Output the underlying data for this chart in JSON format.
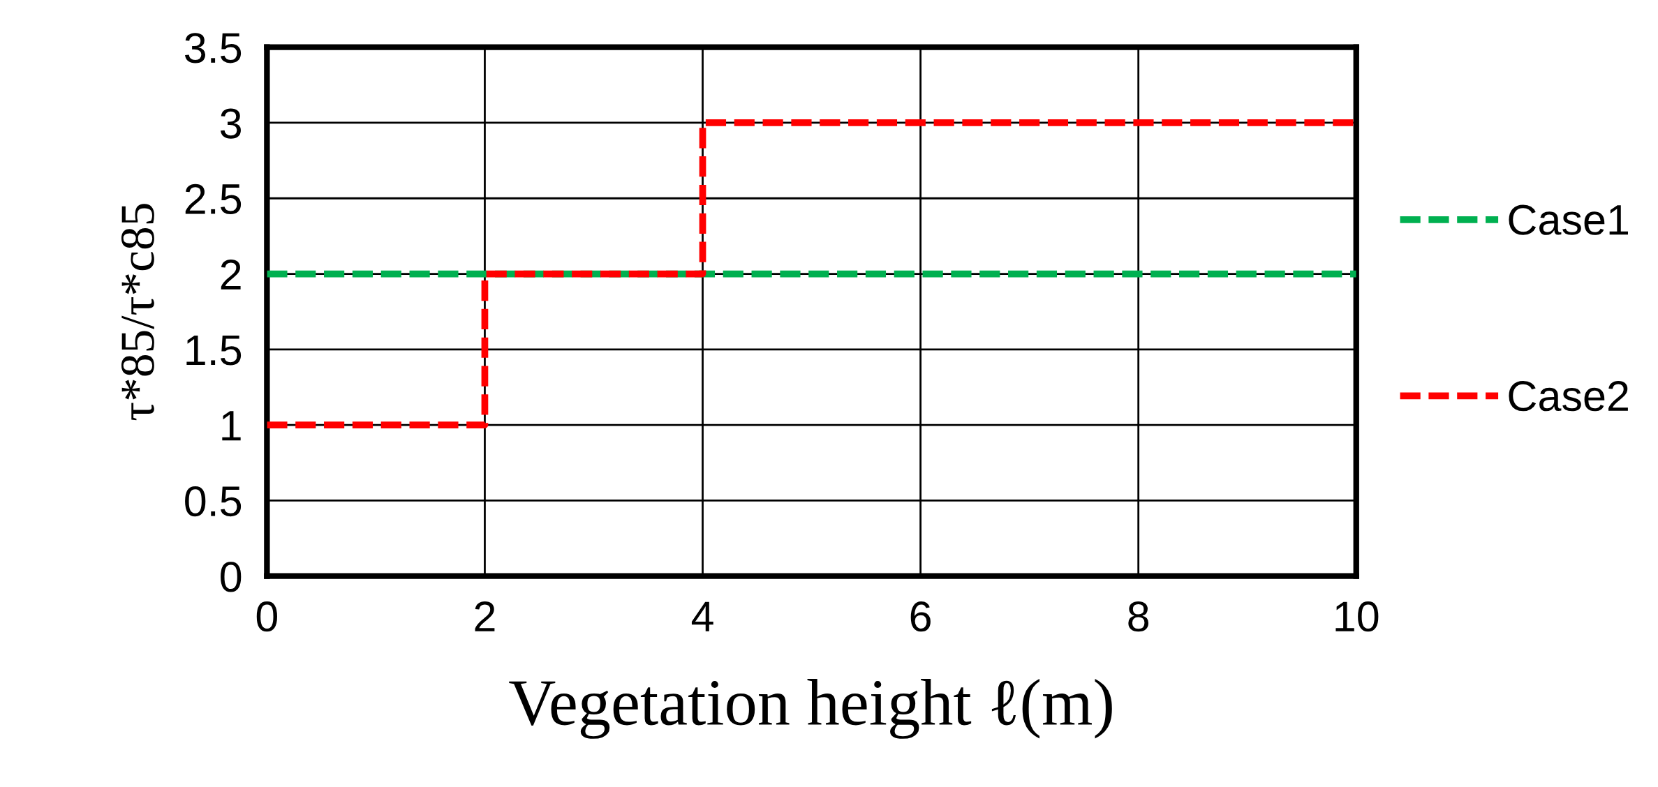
{
  "chart_data": {
    "type": "line",
    "xlabel": "Vegetation height ℓ(m)",
    "ylabel": "τ*85/τ*c85",
    "series": [
      {
        "name": "Case1",
        "color": "#00b050",
        "x": [
          0,
          10
        ],
        "values": [
          2,
          2
        ],
        "line_style": "dashed"
      },
      {
        "name": "Case2",
        "color": "#ff0000",
        "type": "step",
        "x": [
          0,
          2,
          4,
          10
        ],
        "values": [
          1,
          2,
          3,
          3
        ],
        "line_style": "dashed"
      }
    ],
    "xlim": [
      0,
      10
    ],
    "xticks": [
      0,
      2,
      4,
      6,
      8,
      10
    ],
    "ylim": [
      0,
      3.5
    ],
    "yticks": [
      0,
      0.5,
      1,
      1.5,
      2,
      2.5,
      3,
      3.5
    ],
    "grid": true,
    "legend": "right",
    "marker": "none"
  }
}
